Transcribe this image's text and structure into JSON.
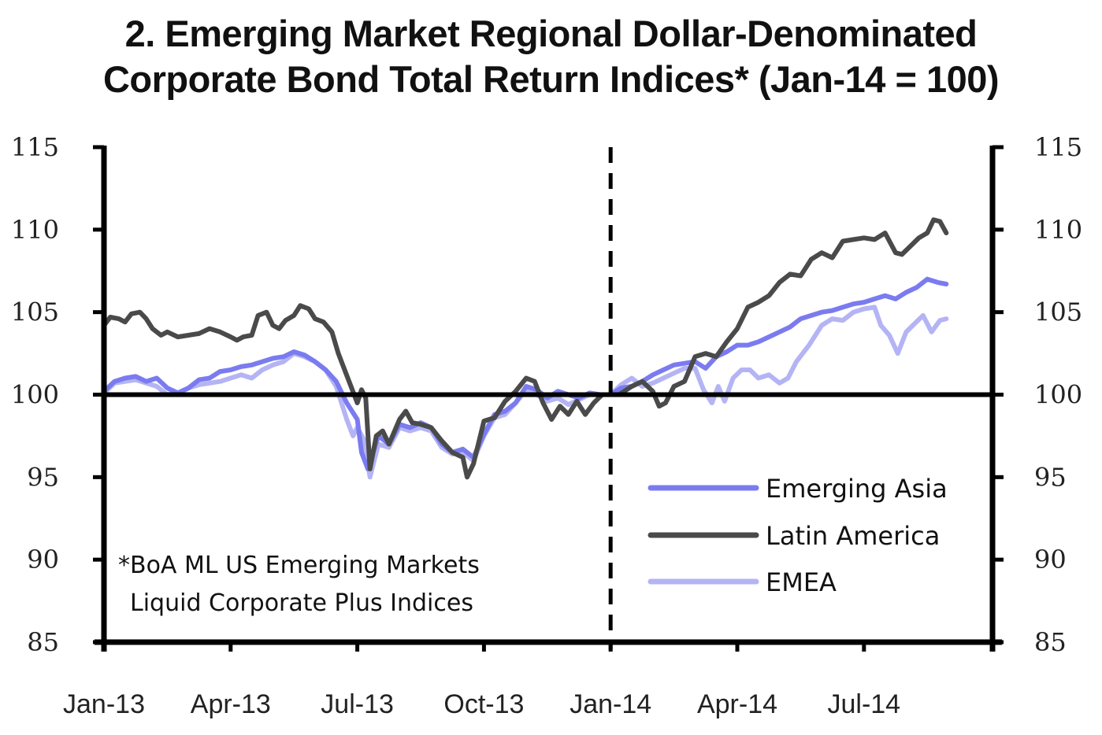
{
  "chart_data": {
    "type": "line",
    "title_line1": "2. Emerging Market Regional Dollar-Denominated",
    "title_line2": "Corporate Bond Total Return Indices* (Jan-14 = 100)",
    "xlabel": "",
    "ylabel": "",
    "ylim": [
      85,
      115
    ],
    "yticks": [
      115,
      110,
      105,
      100,
      95,
      90,
      85
    ],
    "xlim_months": [
      0,
      21
    ],
    "xticks": [
      {
        "month": 0,
        "label": "Jan-13"
      },
      {
        "month": 3,
        "label": "Apr-13"
      },
      {
        "month": 6,
        "label": "Jul-13"
      },
      {
        "month": 9,
        "label": "Oct-13"
      },
      {
        "month": 12,
        "label": "Jan-14"
      },
      {
        "month": 15,
        "label": "Apr-14"
      },
      {
        "month": 18,
        "label": "Jul-14"
      }
    ],
    "reference_line_y": 100,
    "vertical_marker_month": 12,
    "note_line1": "*BoA ML US Emerging Markets",
    "note_line2": "Liquid Corporate Plus Indices",
    "legend_position": "bottom-right",
    "grid": false,
    "series": [
      {
        "name": "Emerging Asia",
        "color": "#7b7bf0",
        "points": [
          [
            0,
            100.2
          ],
          [
            0.25,
            100.8
          ],
          [
            0.5,
            101.0
          ],
          [
            0.75,
            101.1
          ],
          [
            1,
            100.8
          ],
          [
            1.25,
            101.0
          ],
          [
            1.5,
            100.4
          ],
          [
            1.75,
            100.1
          ],
          [
            2,
            100.4
          ],
          [
            2.25,
            100.9
          ],
          [
            2.5,
            101.0
          ],
          [
            2.75,
            101.4
          ],
          [
            3,
            101.5
          ],
          [
            3.25,
            101.7
          ],
          [
            3.5,
            101.8
          ],
          [
            3.75,
            102.0
          ],
          [
            4,
            102.2
          ],
          [
            4.25,
            102.3
          ],
          [
            4.5,
            102.6
          ],
          [
            4.75,
            102.4
          ],
          [
            5,
            102.0
          ],
          [
            5.25,
            101.5
          ],
          [
            5.5,
            100.8
          ],
          [
            5.75,
            99.5
          ],
          [
            6,
            98.5
          ],
          [
            6.1,
            96.5
          ],
          [
            6.25,
            95.5
          ],
          [
            6.5,
            97.5
          ],
          [
            6.75,
            97.0
          ],
          [
            7,
            98.2
          ],
          [
            7.25,
            98.0
          ],
          [
            7.5,
            98.3
          ],
          [
            7.75,
            98.0
          ],
          [
            8,
            97.0
          ],
          [
            8.25,
            96.5
          ],
          [
            8.5,
            96.7
          ],
          [
            8.75,
            96.2
          ],
          [
            9,
            97.6
          ],
          [
            9.25,
            98.8
          ],
          [
            9.5,
            99.0
          ],
          [
            9.75,
            99.5
          ],
          [
            10,
            100.5
          ],
          [
            10.25,
            100.3
          ],
          [
            10.5,
            99.8
          ],
          [
            10.75,
            100.2
          ],
          [
            11,
            100.0
          ],
          [
            11.25,
            99.8
          ],
          [
            11.5,
            100.1
          ],
          [
            11.75,
            100.0
          ],
          [
            12,
            100.0
          ],
          [
            12.25,
            100.4
          ],
          [
            12.5,
            100.5
          ],
          [
            12.75,
            100.8
          ],
          [
            13,
            101.2
          ],
          [
            13.25,
            101.5
          ],
          [
            13.5,
            101.8
          ],
          [
            13.75,
            101.9
          ],
          [
            14,
            102.0
          ],
          [
            14.25,
            101.6
          ],
          [
            14.5,
            102.3
          ],
          [
            14.75,
            102.6
          ],
          [
            15,
            103.0
          ],
          [
            15.25,
            103.0
          ],
          [
            15.5,
            103.2
          ],
          [
            15.75,
            103.5
          ],
          [
            16,
            103.8
          ],
          [
            16.25,
            104.1
          ],
          [
            16.5,
            104.6
          ],
          [
            16.75,
            104.8
          ],
          [
            17,
            105.0
          ],
          [
            17.25,
            105.1
          ],
          [
            17.5,
            105.3
          ],
          [
            17.75,
            105.5
          ],
          [
            18,
            105.6
          ],
          [
            18.25,
            105.8
          ],
          [
            18.5,
            106.0
          ],
          [
            18.75,
            105.8
          ],
          [
            19,
            106.2
          ],
          [
            19.25,
            106.5
          ],
          [
            19.5,
            107.0
          ],
          [
            19.75,
            106.8
          ],
          [
            19.95,
            106.7
          ]
        ]
      },
      {
        "name": "Latin America",
        "color": "#4a4a4a",
        "points": [
          [
            0,
            104.2
          ],
          [
            0.15,
            104.7
          ],
          [
            0.35,
            104.6
          ],
          [
            0.5,
            104.4
          ],
          [
            0.65,
            104.9
          ],
          [
            0.85,
            105.0
          ],
          [
            1,
            104.6
          ],
          [
            1.15,
            104.0
          ],
          [
            1.35,
            103.6
          ],
          [
            1.5,
            103.8
          ],
          [
            1.75,
            103.5
          ],
          [
            2,
            103.6
          ],
          [
            2.25,
            103.7
          ],
          [
            2.5,
            104.0
          ],
          [
            2.75,
            103.8
          ],
          [
            3,
            103.5
          ],
          [
            3.15,
            103.3
          ],
          [
            3.3,
            103.5
          ],
          [
            3.5,
            103.6
          ],
          [
            3.65,
            104.8
          ],
          [
            3.85,
            105.0
          ],
          [
            4,
            104.2
          ],
          [
            4.15,
            104.0
          ],
          [
            4.3,
            104.5
          ],
          [
            4.5,
            104.8
          ],
          [
            4.65,
            105.4
          ],
          [
            4.85,
            105.2
          ],
          [
            5,
            104.6
          ],
          [
            5.2,
            104.4
          ],
          [
            5.4,
            103.8
          ],
          [
            5.55,
            102.5
          ],
          [
            5.7,
            101.5
          ],
          [
            5.85,
            100.5
          ],
          [
            6,
            99.5
          ],
          [
            6.1,
            100.3
          ],
          [
            6.2,
            99.8
          ],
          [
            6.3,
            95.5
          ],
          [
            6.45,
            97.5
          ],
          [
            6.6,
            97.8
          ],
          [
            6.75,
            97.0
          ],
          [
            7,
            98.5
          ],
          [
            7.15,
            99.0
          ],
          [
            7.3,
            98.3
          ],
          [
            7.5,
            98.2
          ],
          [
            7.75,
            98.0
          ],
          [
            8,
            97.2
          ],
          [
            8.25,
            96.5
          ],
          [
            8.5,
            96.2
          ],
          [
            8.6,
            95.0
          ],
          [
            8.75,
            95.8
          ],
          [
            9,
            98.4
          ],
          [
            9.25,
            98.6
          ],
          [
            9.5,
            99.6
          ],
          [
            9.75,
            100.2
          ],
          [
            10,
            101.0
          ],
          [
            10.2,
            100.8
          ],
          [
            10.4,
            99.5
          ],
          [
            10.6,
            98.5
          ],
          [
            10.8,
            99.3
          ],
          [
            11,
            98.8
          ],
          [
            11.2,
            99.6
          ],
          [
            11.4,
            98.8
          ],
          [
            11.6,
            99.5
          ],
          [
            11.8,
            100.0
          ],
          [
            12,
            100.0
          ],
          [
            12.2,
            100.0
          ],
          [
            12.5,
            100.5
          ],
          [
            12.75,
            100.8
          ],
          [
            13,
            100.2
          ],
          [
            13.15,
            99.3
          ],
          [
            13.3,
            99.5
          ],
          [
            13.5,
            100.5
          ],
          [
            13.75,
            100.8
          ],
          [
            14,
            102.3
          ],
          [
            14.25,
            102.5
          ],
          [
            14.5,
            102.3
          ],
          [
            14.75,
            103.2
          ],
          [
            15,
            104.0
          ],
          [
            15.25,
            105.3
          ],
          [
            15.5,
            105.6
          ],
          [
            15.75,
            106.0
          ],
          [
            16,
            106.8
          ],
          [
            16.25,
            107.3
          ],
          [
            16.5,
            107.2
          ],
          [
            16.75,
            108.2
          ],
          [
            17,
            108.6
          ],
          [
            17.25,
            108.3
          ],
          [
            17.5,
            109.3
          ],
          [
            17.75,
            109.4
          ],
          [
            18,
            109.5
          ],
          [
            18.25,
            109.4
          ],
          [
            18.5,
            109.8
          ],
          [
            18.75,
            108.6
          ],
          [
            18.9,
            108.5
          ],
          [
            19.1,
            109.0
          ],
          [
            19.3,
            109.5
          ],
          [
            19.5,
            109.8
          ],
          [
            19.65,
            110.6
          ],
          [
            19.8,
            110.5
          ],
          [
            19.95,
            109.8
          ]
        ]
      },
      {
        "name": "EMEA",
        "color": "#b4b4f5",
        "points": [
          [
            0,
            100.1
          ],
          [
            0.25,
            100.7
          ],
          [
            0.5,
            100.8
          ],
          [
            0.75,
            100.9
          ],
          [
            1,
            100.7
          ],
          [
            1.25,
            100.5
          ],
          [
            1.5,
            100.0
          ],
          [
            1.75,
            100.1
          ],
          [
            2,
            100.4
          ],
          [
            2.25,
            100.6
          ],
          [
            2.5,
            100.7
          ],
          [
            2.75,
            100.8
          ],
          [
            3,
            101.0
          ],
          [
            3.25,
            101.2
          ],
          [
            3.5,
            101.0
          ],
          [
            3.75,
            101.5
          ],
          [
            4,
            101.8
          ],
          [
            4.25,
            102.0
          ],
          [
            4.5,
            102.5
          ],
          [
            4.75,
            102.3
          ],
          [
            5,
            102.0
          ],
          [
            5.25,
            101.5
          ],
          [
            5.5,
            100.5
          ],
          [
            5.75,
            98.5
          ],
          [
            5.9,
            97.5
          ],
          [
            6,
            98.0
          ],
          [
            6.15,
            97.3
          ],
          [
            6.3,
            95.0
          ],
          [
            6.5,
            97.0
          ],
          [
            6.75,
            96.8
          ],
          [
            7,
            98.0
          ],
          [
            7.25,
            97.8
          ],
          [
            7.5,
            98.0
          ],
          [
            7.75,
            97.8
          ],
          [
            8,
            96.8
          ],
          [
            8.25,
            96.4
          ],
          [
            8.5,
            96.5
          ],
          [
            8.75,
            96.0
          ],
          [
            9,
            97.5
          ],
          [
            9.25,
            98.6
          ],
          [
            9.5,
            98.8
          ],
          [
            9.75,
            99.5
          ],
          [
            10,
            100.3
          ],
          [
            10.25,
            100.0
          ],
          [
            10.5,
            99.6
          ],
          [
            10.75,
            99.8
          ],
          [
            11,
            99.4
          ],
          [
            11.25,
            99.7
          ],
          [
            11.5,
            100.0
          ],
          [
            11.75,
            100.0
          ],
          [
            12,
            100.0
          ],
          [
            12.25,
            100.6
          ],
          [
            12.5,
            101.0
          ],
          [
            12.75,
            100.5
          ],
          [
            13,
            100.7
          ],
          [
            13.25,
            101.0
          ],
          [
            13.5,
            101.3
          ],
          [
            13.75,
            101.6
          ],
          [
            14,
            101.6
          ],
          [
            14.2,
            100.3
          ],
          [
            14.4,
            99.5
          ],
          [
            14.55,
            100.5
          ],
          [
            14.7,
            99.6
          ],
          [
            14.9,
            101.0
          ],
          [
            15.1,
            101.5
          ],
          [
            15.3,
            101.5
          ],
          [
            15.5,
            101.0
          ],
          [
            15.75,
            101.2
          ],
          [
            16,
            100.7
          ],
          [
            16.2,
            101.0
          ],
          [
            16.4,
            102.0
          ],
          [
            16.7,
            103.0
          ],
          [
            17,
            104.2
          ],
          [
            17.25,
            104.6
          ],
          [
            17.5,
            104.5
          ],
          [
            17.75,
            105.0
          ],
          [
            18,
            105.2
          ],
          [
            18.25,
            105.3
          ],
          [
            18.4,
            104.2
          ],
          [
            18.6,
            103.6
          ],
          [
            18.8,
            102.5
          ],
          [
            19.0,
            103.8
          ],
          [
            19.2,
            104.3
          ],
          [
            19.4,
            104.8
          ],
          [
            19.6,
            103.8
          ],
          [
            19.8,
            104.5
          ],
          [
            19.95,
            104.6
          ]
        ]
      }
    ]
  }
}
